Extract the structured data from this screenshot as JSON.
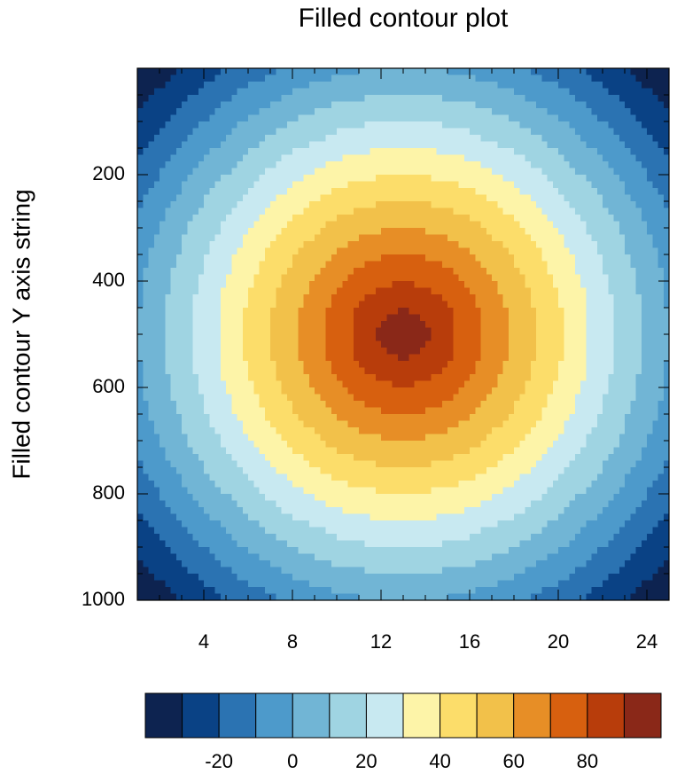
{
  "chart_data": {
    "type": "contour",
    "title": "Filled contour plot",
    "y_label": "Filled contour Y axis string",
    "x": [
      1,
      2,
      3,
      4,
      5,
      6,
      7,
      8,
      9,
      10,
      11,
      12,
      13,
      14,
      15,
      16,
      17,
      18,
      19,
      20,
      21,
      22,
      23,
      24,
      25
    ],
    "y": [
      0,
      50,
      100,
      150,
      200,
      250,
      300,
      350,
      400,
      450,
      500,
      550,
      600,
      650,
      700,
      750,
      800,
      850,
      900,
      950,
      1000
    ],
    "z": [
      [
        -41,
        -36,
        -30,
        -25,
        -20,
        -16,
        -12,
        -8,
        -5,
        -3,
        -1,
        0,
        0,
        0,
        -1,
        -3,
        -5,
        -8,
        -12,
        -16,
        -20,
        -25,
        -30,
        -36,
        -41
      ],
      [
        -35,
        -28,
        -23,
        -17,
        -12,
        -7,
        -3,
        1,
        4,
        7,
        8,
        10,
        10,
        10,
        8,
        7,
        4,
        1,
        -3,
        -7,
        -12,
        -17,
        -23,
        -28,
        -35
      ],
      [
        -28,
        -22,
        -16,
        -10,
        -4,
        1,
        6,
        10,
        13,
        16,
        18,
        20,
        20,
        20,
        18,
        16,
        13,
        10,
        6,
        1,
        -4,
        -10,
        -16,
        -22,
        -28
      ],
      [
        -22,
        -15,
        -9,
        -3,
        3,
        9,
        14,
        19,
        22,
        26,
        28,
        30,
        30,
        30,
        28,
        26,
        22,
        19,
        14,
        9,
        3,
        -3,
        -9,
        -15,
        -22
      ],
      [
        -17,
        -10,
        -3,
        4,
        10,
        16,
        22,
        27,
        31,
        35,
        38,
        39,
        40,
        39,
        38,
        35,
        31,
        27,
        22,
        16,
        10,
        4,
        -3,
        -10,
        -17
      ],
      [
        -12,
        -4,
        3,
        10,
        17,
        23,
        29,
        35,
        40,
        44,
        47,
        49,
        50,
        49,
        47,
        44,
        40,
        35,
        29,
        23,
        17,
        10,
        3,
        -4,
        -12
      ],
      [
        -8,
        0,
        8,
        15,
        22,
        29,
        36,
        42,
        48,
        53,
        57,
        59,
        60,
        59,
        57,
        53,
        48,
        42,
        36,
        29,
        22,
        15,
        8,
        0,
        -8
      ],
      [
        -4,
        4,
        11,
        19,
        27,
        34,
        42,
        49,
        55,
        61,
        66,
        69,
        70,
        69,
        66,
        61,
        55,
        49,
        42,
        34,
        27,
        19,
        11,
        4,
        -4
      ],
      [
        -2,
        6,
        14,
        22,
        30,
        38,
        46,
        54,
        61,
        68,
        74,
        78,
        80,
        78,
        74,
        68,
        61,
        54,
        46,
        38,
        30,
        22,
        14,
        6,
        -2
      ],
      [
        -1,
        8,
        16,
        24,
        33,
        41,
        49,
        57,
        65,
        73,
        81,
        87,
        90,
        87,
        81,
        73,
        65,
        57,
        49,
        41,
        33,
        24,
        16,
        8,
        -1
      ],
      [
        0,
        8,
        17,
        25,
        33,
        42,
        50,
        58,
        67,
        75,
        83,
        92,
        100,
        92,
        83,
        75,
        67,
        58,
        50,
        42,
        33,
        25,
        17,
        8,
        0
      ],
      [
        -1,
        8,
        16,
        24,
        33,
        41,
        49,
        57,
        65,
        73,
        81,
        87,
        90,
        87,
        81,
        73,
        65,
        57,
        49,
        41,
        33,
        24,
        16,
        8,
        -1
      ],
      [
        -2,
        6,
        14,
        22,
        30,
        38,
        46,
        54,
        61,
        68,
        74,
        78,
        80,
        78,
        74,
        68,
        61,
        54,
        46,
        38,
        30,
        22,
        14,
        6,
        -2
      ],
      [
        -4,
        4,
        11,
        19,
        27,
        34,
        42,
        49,
        55,
        61,
        66,
        69,
        70,
        69,
        66,
        61,
        55,
        49,
        42,
        34,
        27,
        19,
        11,
        4,
        -4
      ],
      [
        -8,
        0,
        8,
        15,
        22,
        29,
        36,
        42,
        48,
        53,
        57,
        59,
        60,
        59,
        57,
        53,
        48,
        42,
        36,
        29,
        22,
        15,
        8,
        0,
        -8
      ],
      [
        -12,
        -4,
        3,
        10,
        17,
        23,
        29,
        35,
        40,
        44,
        47,
        49,
        50,
        49,
        47,
        44,
        40,
        35,
        29,
        23,
        17,
        10,
        3,
        -4,
        -12
      ],
      [
        -17,
        -10,
        -3,
        4,
        10,
        16,
        22,
        27,
        31,
        35,
        38,
        39,
        40,
        39,
        38,
        35,
        31,
        27,
        22,
        16,
        10,
        4,
        -3,
        -10,
        -17
      ],
      [
        -22,
        -15,
        -9,
        -3,
        3,
        9,
        14,
        19,
        22,
        26,
        28,
        30,
        30,
        30,
        28,
        26,
        22,
        19,
        14,
        9,
        3,
        -3,
        -9,
        -15,
        -22
      ],
      [
        -28,
        -22,
        -16,
        -10,
        -4,
        1,
        6,
        10,
        13,
        16,
        18,
        20,
        20,
        20,
        18,
        16,
        13,
        10,
        6,
        1,
        -4,
        -10,
        -16,
        -22,
        -28
      ],
      [
        -35,
        -28,
        -23,
        -17,
        -12,
        -7,
        -3,
        1,
        4,
        7,
        8,
        10,
        10,
        10,
        8,
        7,
        4,
        1,
        -3,
        -7,
        -12,
        -17,
        -23,
        -28,
        -35
      ],
      [
        -41,
        -36,
        -30,
        -25,
        -20,
        -16,
        -12,
        -8,
        -5,
        -3,
        -1,
        0,
        0,
        0,
        -1,
        -3,
        -5,
        -8,
        -12,
        -16,
        -20,
        -25,
        -30,
        -36,
        -41
      ]
    ],
    "xlim": [
      1,
      25
    ],
    "ylim": [
      0,
      1000
    ],
    "y_reversed": true,
    "xticks": [
      4,
      8,
      12,
      16,
      20,
      24
    ],
    "yticks": [
      200,
      400,
      600,
      800,
      1000
    ],
    "xminorticks": [
      1,
      2,
      3,
      4,
      5,
      6,
      7,
      8,
      9,
      10,
      11,
      12,
      13,
      14,
      15,
      16,
      17,
      18,
      19,
      20,
      21,
      22,
      23,
      24,
      25
    ],
    "yminorticks": [
      0,
      50,
      100,
      150,
      200,
      250,
      300,
      350,
      400,
      450,
      500,
      550,
      600,
      650,
      700,
      750,
      800,
      850,
      900,
      950,
      1000
    ],
    "levels": [
      -30,
      -20,
      -10,
      0,
      10,
      20,
      30,
      40,
      50,
      60,
      70,
      80,
      90
    ],
    "colors": [
      "#0d2350",
      "#0a4285",
      "#2b73b2",
      "#4d9acb",
      "#71b5d5",
      "#9fd4e2",
      "#c8e9f1",
      "#fdf4a8",
      "#fcdd6a",
      "#f2c14a",
      "#e78e26",
      "#d7600f",
      "#b83d0b",
      "#8a2818"
    ],
    "colorbar_ticks": [
      -20,
      0,
      20,
      40,
      60,
      80
    ]
  }
}
